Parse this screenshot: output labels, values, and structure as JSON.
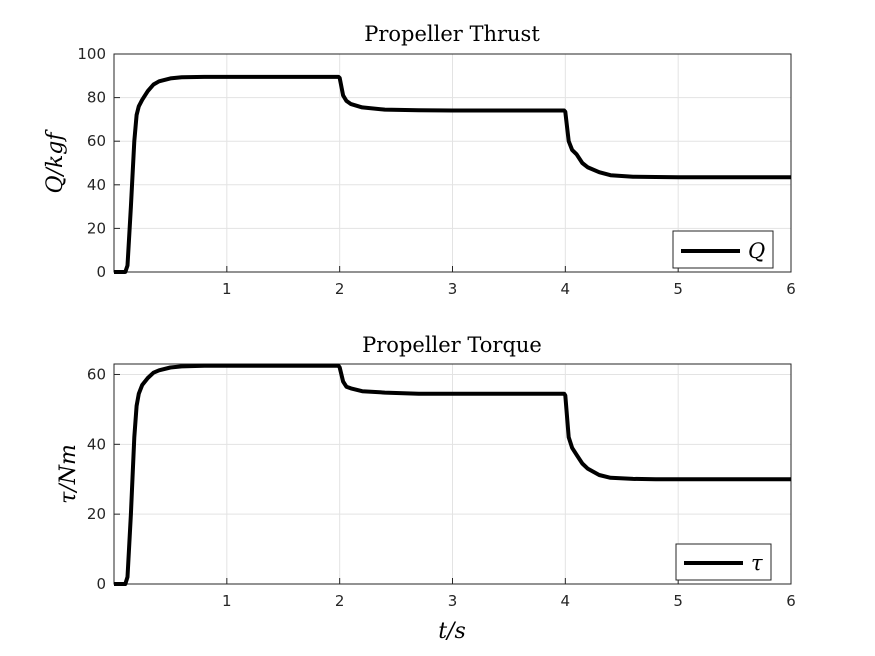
{
  "chart_data": [
    {
      "type": "line",
      "title": "Propeller Thrust",
      "xlabel": "",
      "ylabel": "Q/kgf",
      "xlim": [
        0,
        6
      ],
      "ylim": [
        0,
        100
      ],
      "xticks": [
        1,
        2,
        3,
        4,
        5,
        6
      ],
      "yticks": [
        0,
        20,
        40,
        60,
        80,
        100
      ],
      "grid": true,
      "legend_position": "bottom-right",
      "line_color": "#000000",
      "series": [
        {
          "name": "Q",
          "x": [
            0,
            0.1,
            0.12,
            0.15,
            0.18,
            0.2,
            0.22,
            0.25,
            0.3,
            0.35,
            0.4,
            0.5,
            0.6,
            0.8,
            1.0,
            1.5,
            1.99,
            2.0,
            2.03,
            2.06,
            2.1,
            2.2,
            2.4,
            2.7,
            3.0,
            3.5,
            3.99,
            4.0,
            4.03,
            4.06,
            4.1,
            4.15,
            4.2,
            4.3,
            4.4,
            4.6,
            4.8,
            5.0,
            6.0
          ],
          "y": [
            0,
            0,
            3,
            30,
            60,
            72,
            76,
            79,
            83,
            86,
            87.5,
            88.8,
            89.3,
            89.5,
            89.5,
            89.5,
            89.5,
            89,
            81,
            78.5,
            77,
            75.5,
            74.5,
            74.2,
            74.1,
            74.1,
            74.1,
            73.5,
            60,
            56,
            54,
            50,
            48,
            45.8,
            44.4,
            43.7,
            43.6,
            43.5,
            43.5
          ]
        }
      ]
    },
    {
      "type": "line",
      "title": "Propeller Torque",
      "xlabel": "t/s",
      "ylabel": "τ/Nm",
      "xlim": [
        0,
        6
      ],
      "ylim": [
        0,
        63
      ],
      "xticks": [
        1,
        2,
        3,
        4,
        5,
        6
      ],
      "yticks": [
        0,
        20,
        40,
        60
      ],
      "grid": true,
      "legend_position": "bottom-right",
      "line_color": "#000000",
      "series": [
        {
          "name": "τ",
          "x": [
            0,
            0.1,
            0.12,
            0.15,
            0.18,
            0.2,
            0.22,
            0.25,
            0.3,
            0.35,
            0.4,
            0.5,
            0.6,
            0.8,
            1.0,
            1.5,
            1.99,
            2.0,
            2.03,
            2.06,
            2.1,
            2.2,
            2.4,
            2.7,
            3.0,
            3.5,
            3.99,
            4.0,
            4.03,
            4.06,
            4.1,
            4.15,
            4.2,
            4.3,
            4.4,
            4.6,
            4.8,
            5.0,
            6.0
          ],
          "y": [
            0,
            0,
            2,
            20,
            42,
            51,
            54.5,
            57,
            59,
            60.5,
            61.2,
            62,
            62.3,
            62.5,
            62.5,
            62.5,
            62.5,
            62,
            58,
            56.5,
            56,
            55.2,
            54.8,
            54.5,
            54.5,
            54.5,
            54.5,
            54,
            42,
            39,
            37,
            34.5,
            33,
            31.2,
            30.4,
            30.1,
            30,
            30,
            30
          ]
        }
      ]
    }
  ]
}
